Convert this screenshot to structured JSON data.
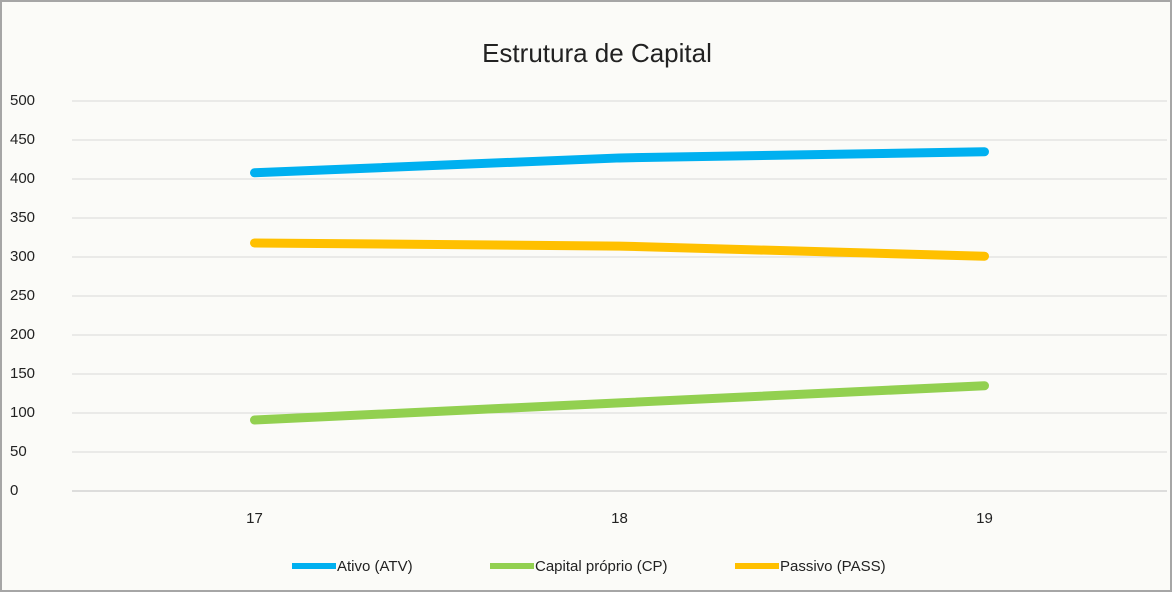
{
  "chart_data": {
    "type": "line",
    "title": "Estrutura de Capital",
    "categories": [
      "17",
      "18",
      "19"
    ],
    "series": [
      {
        "name": "Ativo (ATV)",
        "color": "#00b0f0",
        "values": [
          408,
          427,
          435
        ]
      },
      {
        "name": "Capital próprio (CP)",
        "color": "#92d050",
        "values": [
          91,
          113,
          135
        ]
      },
      {
        "name": "Passivo (PASS)",
        "color": "#ffc000",
        "values": [
          318,
          314,
          301
        ]
      }
    ],
    "ylim": [
      0,
      500
    ],
    "yticks": [
      0,
      50,
      100,
      150,
      200,
      250,
      300,
      350,
      400,
      450,
      500
    ],
    "grid": true,
    "legend": "bottom"
  }
}
